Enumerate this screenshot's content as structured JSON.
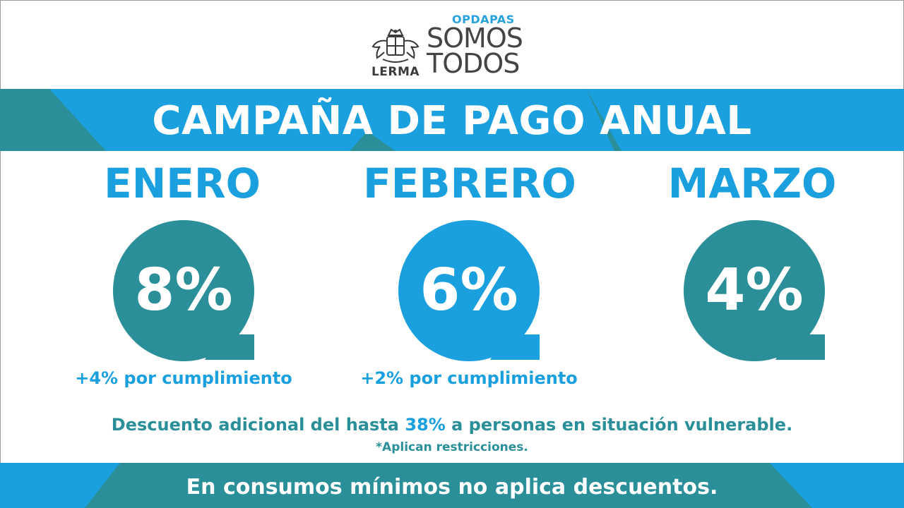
{
  "header": {
    "lerma_label": "LERMA",
    "brand_small": "OPDAPAS",
    "brand_line1": "SOMOS",
    "brand_line2": "TODOS"
  },
  "title": "CAMPAÑA DE PAGO ANUAL",
  "months": [
    {
      "name": "ENERO",
      "discount": "8%",
      "bonus": "+4% por cumplimiento",
      "color": "#2a8f99"
    },
    {
      "name": "FEBRERO",
      "discount": "6%",
      "bonus": "+2% por cumplimiento",
      "color": "#1aa0df"
    },
    {
      "name": "MARZO",
      "discount": "4%",
      "bonus": "",
      "color": "#2a8f99"
    }
  ],
  "note": {
    "prefix": "Descuento adicional del hasta ",
    "highlight": "38%",
    "suffix": " a personas en situación vulnerable.",
    "restriction": "*Aplican restricciones."
  },
  "footer": "En consumos mínimos no aplica descuentos.",
  "colors": {
    "teal": "#2a8f99",
    "blue": "#1aa0df",
    "white": "#ffffff"
  }
}
